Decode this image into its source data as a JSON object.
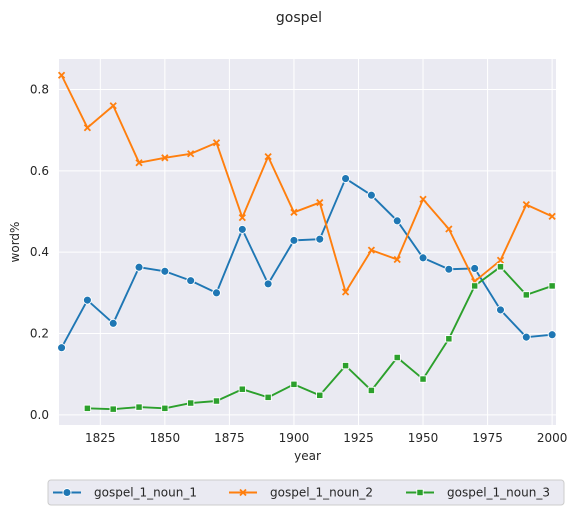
{
  "chart_data": {
    "type": "line",
    "title": "gospel",
    "xlabel": "year",
    "ylabel": "word%",
    "xlim": [
      1809,
      2001.5
    ],
    "ylim": [
      -0.025,
      0.875
    ],
    "xticks": [
      1825,
      1850,
      1875,
      1900,
      1925,
      1950,
      1975,
      2000
    ],
    "yticks": [
      0.0,
      0.2,
      0.4,
      0.6,
      0.8
    ],
    "ytick_labels": [
      "0.0",
      "0.2",
      "0.4",
      "0.6",
      "0.8"
    ],
    "grid": true,
    "legend_position": "bottom",
    "series": [
      {
        "name": "gospel_1_noun_1",
        "color": "#1f77b4",
        "marker": "circle",
        "x": [
          1810,
          1820,
          1830,
          1840,
          1850,
          1860,
          1870,
          1880,
          1890,
          1900,
          1910,
          1920,
          1930,
          1940,
          1950,
          1960,
          1970,
          1980,
          1990,
          2000
        ],
        "values": [
          0.165,
          0.282,
          0.225,
          0.363,
          0.353,
          0.33,
          0.3,
          0.456,
          0.322,
          0.429,
          0.432,
          0.581,
          0.54,
          0.477,
          0.386,
          0.358,
          0.36,
          0.258,
          0.191,
          0.197
        ]
      },
      {
        "name": "gospel_1_noun_2",
        "color": "#ff7f0e",
        "marker": "x",
        "x": [
          1810,
          1820,
          1830,
          1840,
          1850,
          1860,
          1870,
          1880,
          1890,
          1900,
          1910,
          1920,
          1930,
          1940,
          1950,
          1960,
          1970,
          1980,
          1990,
          2000
        ],
        "values": [
          0.835,
          0.706,
          0.76,
          0.62,
          0.632,
          0.642,
          0.669,
          0.485,
          0.635,
          0.498,
          0.522,
          0.302,
          0.405,
          0.382,
          0.53,
          0.457,
          0.328,
          0.38,
          0.517,
          0.488
        ]
      },
      {
        "name": "gospel_1_noun_3",
        "color": "#2ca02c",
        "marker": "square",
        "x": [
          1820,
          1830,
          1840,
          1850,
          1860,
          1870,
          1880,
          1890,
          1900,
          1910,
          1920,
          1930,
          1940,
          1950,
          1960,
          1970,
          1980,
          1990,
          2000
        ],
        "values": [
          0.016,
          0.014,
          0.019,
          0.016,
          0.029,
          0.034,
          0.063,
          0.043,
          0.075,
          0.048,
          0.121,
          0.06,
          0.141,
          0.088,
          0.187,
          0.317,
          0.364,
          0.295,
          0.317
        ]
      }
    ]
  }
}
